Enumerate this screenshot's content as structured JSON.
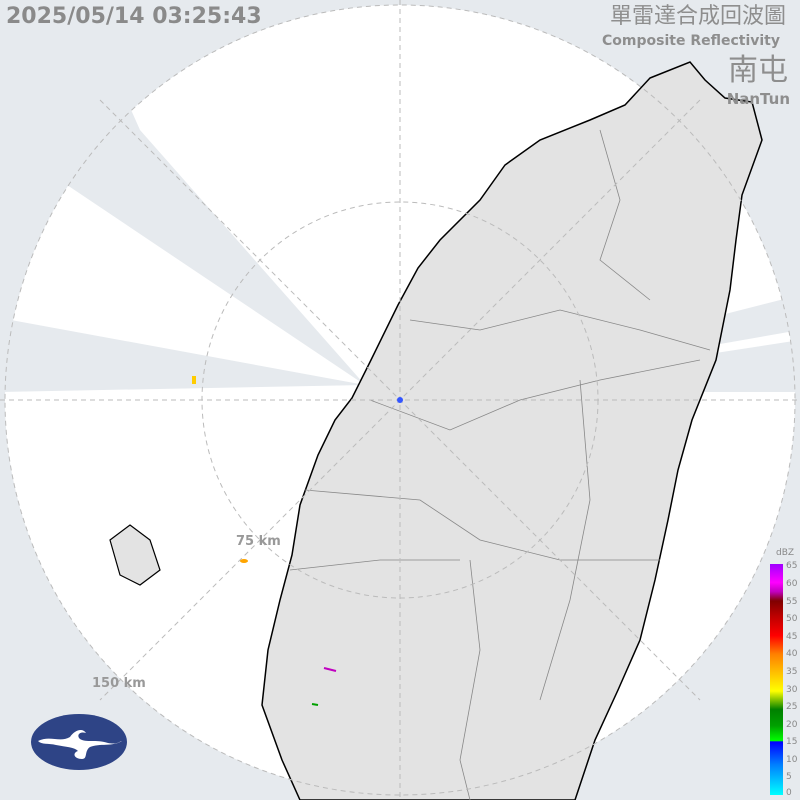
{
  "header": {
    "timestamp": "2025/05/14 03:25:43",
    "title_zh": "單雷達合成回波圖",
    "title_en": "Composite Reflectivity",
    "station_zh": "南屯",
    "station_en": "NanTun"
  },
  "map": {
    "range_rings": [
      "75 km",
      "150 km"
    ],
    "background_color": "#e6eaee",
    "coverage_color": "#ffffff",
    "land_color": "#e3e3e3",
    "radar_site_color": "#3355ff"
  },
  "legend": {
    "unit": "dBZ",
    "ticks": [
      "65",
      "60",
      "55",
      "50",
      "45",
      "40",
      "35",
      "30",
      "25",
      "20",
      "15",
      "10",
      "5",
      "0"
    ]
  },
  "logo": {
    "name": "cwa-logo",
    "color": "#2e4486"
  }
}
